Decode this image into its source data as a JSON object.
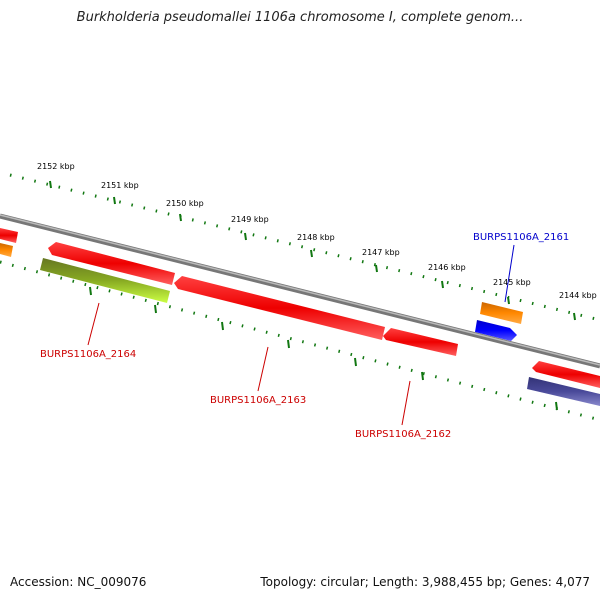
{
  "title": "Burkholderia pseudomallei 1106a chromosome I, complete genom...",
  "ticks": [
    "2152 kbp",
    "2151 kbp",
    "2150 kbp",
    "2149 kbp",
    "2148 kbp",
    "2147 kbp",
    "2146 kbp",
    "2145 kbp",
    "2144 kbp"
  ],
  "genes": {
    "g2164": "BURPS1106A_2164",
    "g2163": "BURPS1106A_2163",
    "g2162": "BURPS1106A_2162",
    "g2161": "BURPS1106A_2161"
  },
  "colors": {
    "cds_red": "#ff0000",
    "orange": "#ff8800",
    "green": "#88cc22",
    "blue": "#0000ff",
    "slate": "#4a4a9a",
    "backbone": "#888888",
    "tick_green": "#117711",
    "label_red": "#cc0000",
    "label_blue": "#0000cc"
  },
  "footer": {
    "accession": "Accession: NC_009076",
    "summary": "Topology: circular; Length: 3,988,455 bp; Genes: 4,077"
  }
}
